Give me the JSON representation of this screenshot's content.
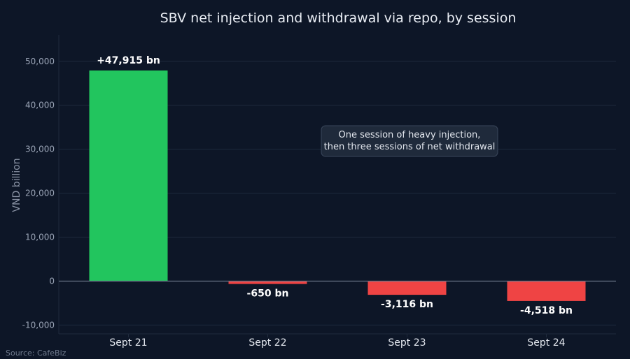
{
  "chart_data": {
    "type": "bar",
    "title": "SBV net injection and withdrawal via repo, by session",
    "ylabel": "VND billion",
    "xlabel": "",
    "categories": [
      "Sept 21",
      "Sept 22",
      "Sept 23",
      "Sept 24"
    ],
    "values": [
      47915,
      -650,
      -3116,
      -4518
    ],
    "data_labels": [
      "+47,915 bn",
      "-650 bn",
      "-3,116 bn",
      "-4,518 bn"
    ],
    "ylim": [
      -12000,
      56000
    ],
    "yticks": [
      -10000,
      0,
      10000,
      20000,
      30000,
      40000,
      50000
    ],
    "ytick_labels": [
      "-10,000",
      "0",
      "10,000",
      "20,000",
      "30,000",
      "40,000",
      "50,000"
    ],
    "grid": true,
    "colors": {
      "positive": "#22c55e",
      "negative": "#ef4444",
      "grid": "#1f2a3d",
      "zero_line": "#6b7588"
    },
    "annotation": {
      "lines": [
        "One session of heavy injection,",
        "then three sessions of net withdrawal"
      ]
    },
    "source": "Source: CafeBiz"
  }
}
